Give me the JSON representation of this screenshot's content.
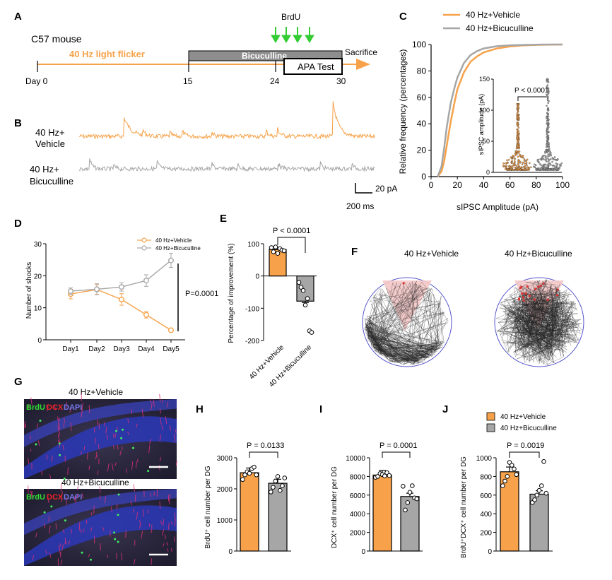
{
  "colors": {
    "orange": "#f7a24a",
    "gray": "#a6a6a6",
    "green": "#33cc33",
    "track_red": "#f4c6c6",
    "circle_blue": "#5555cc"
  },
  "panelA": {
    "letter": "A",
    "mouse": "C57 mouse",
    "flicker": "40 Hz light flicker",
    "bicuculline": "Bicuculline",
    "brdu": "BrdU",
    "apa": "APA Test",
    "sacrifice": "Sacrifice",
    "days": [
      "Day 0",
      "15",
      "24",
      "30"
    ]
  },
  "panelB": {
    "letter": "B",
    "vehicle_label": [
      "40 Hz+",
      "Vehicle"
    ],
    "bic_label": [
      "40 Hz+",
      "Bicuculline"
    ],
    "scale_y": "20 pA",
    "scale_x": "200 ms"
  },
  "panelC": {
    "letter": "C",
    "legend": [
      "40 Hz+Vehicle",
      "40 Hz+Bicuculline"
    ],
    "xlabel": "sIPSC Amplitude (pA)",
    "ylabel": "Relative frequency (percentages)",
    "inset_ylabel": "sIPSC amplitude (pA)",
    "inset_p": "P < 0.0001"
  },
  "panelD": {
    "letter": "D",
    "legend": [
      "40 Hz+Vehicle",
      "40 Hz+Bicuculline"
    ],
    "ylabel": "Number of shocks",
    "p": "P=0.0001"
  },
  "panelE": {
    "letter": "E",
    "ylabel": "Percentage of improvement (%)",
    "p": "P < 0.0001"
  },
  "panelF": {
    "letter": "F",
    "titles": [
      "40 Hz+Vehicle",
      "40 Hz+Bicuculline"
    ]
  },
  "panelG": {
    "letter": "G",
    "titles": [
      "40 Hz+Vehicle",
      "40 Hz+Bicuculline"
    ],
    "stain": [
      "BrdU",
      "DCX",
      "DAPI"
    ]
  },
  "panelH": {
    "letter": "H",
    "ylabel": "BrdU⁺ cell number per DG",
    "p": "P = 0.0133"
  },
  "panelI": {
    "letter": "I",
    "ylabel": "DCX⁺ cell number per DG",
    "p": "P = 0.0001"
  },
  "panelJ": {
    "letter": "J",
    "ylabel": "BrdU⁺DCX⁺ cell number per DG",
    "p": "P = 0.0019",
    "legend": [
      "40 Hz+Vehicle",
      "40 Hz+Bicuculline"
    ]
  },
  "chart_data": [
    {
      "id": "C",
      "type": "line",
      "title": "",
      "xlabel": "sIPSC Amplitude (pA)",
      "ylabel": "Relative frequency (percentages)",
      "xlim": [
        0,
        100
      ],
      "ylim": [
        0,
        100
      ],
      "xticks": [
        0,
        20,
        40,
        60,
        80,
        100
      ],
      "yticks": [
        0,
        20,
        40,
        60,
        80,
        100
      ],
      "x": [
        5,
        8,
        10,
        12,
        15,
        18,
        20,
        25,
        30,
        35,
        40,
        50,
        60,
        70,
        80,
        90,
        100
      ],
      "series": [
        {
          "name": "40 Hz+Vehicle",
          "values": [
            0,
            4,
            12,
            24,
            42,
            57,
            66,
            79,
            87,
            91,
            94,
            97,
            98.5,
            99.3,
            99.7,
            99.9,
            100
          ]
        },
        {
          "name": "40 Hz+Bicuculline",
          "values": [
            0,
            8,
            22,
            38,
            56,
            68,
            75,
            86,
            92,
            95,
            97,
            98.7,
            99.4,
            99.7,
            99.9,
            100,
            100
          ]
        }
      ]
    },
    {
      "id": "C-inset",
      "type": "scatter",
      "ylabel": "sIPSC amplitude (pA)",
      "ylim": [
        0,
        150
      ],
      "yticks": [
        0,
        50,
        100,
        150
      ],
      "categories": [
        "40 Hz+Vehicle",
        "40 Hz+Bicuculline"
      ]
    },
    {
      "id": "D",
      "type": "line",
      "categories": [
        "Day1",
        "Day2",
        "Day3",
        "Day4",
        "Day5"
      ],
      "ylabel": "Number of shocks",
      "ylim": [
        0,
        30
      ],
      "yticks": [
        0,
        10,
        20,
        30
      ],
      "series": [
        {
          "name": "40 Hz+Vehicle",
          "values": [
            14.3,
            15.7,
            12.6,
            7.8,
            3.0
          ],
          "err": [
            1.5,
            1.5,
            1.8,
            1.0,
            0.5
          ]
        },
        {
          "name": "40 Hz+Bicuculline",
          "values": [
            15.2,
            15.8,
            16.5,
            18.5,
            24.8
          ],
          "err": [
            1.0,
            1.7,
            1.3,
            1.8,
            2.2
          ]
        }
      ]
    },
    {
      "id": "E",
      "type": "bar",
      "categories": [
        "40 Hz+Vehicle",
        "40 Hz+Bicuculline"
      ],
      "ylabel": "Percentage of improvement (%)",
      "ylim": [
        -200,
        100
      ],
      "yticks": [
        -200,
        -100,
        0,
        100
      ],
      "values": [
        82,
        -78
      ],
      "points": [
        [
          88,
          75,
          90,
          70,
          85,
          80,
          78
        ],
        [
          -20,
          -35,
          -45,
          -90,
          -70,
          -170,
          -175
        ]
      ]
    },
    {
      "id": "H",
      "type": "bar",
      "categories": [
        "40 Hz+Vehicle",
        "40 Hz+Bicuculline"
      ],
      "ylabel": "BrdU⁺ cell number per DG",
      "ylim": [
        0,
        3000
      ],
      "yticks": [
        0,
        1000,
        2000,
        3000
      ],
      "values": [
        2520,
        2180
      ],
      "points": [
        [
          2300,
          2450,
          2550,
          2500,
          2650,
          2700,
          2450
        ],
        [
          1900,
          2050,
          2250,
          2400,
          1950,
          2100,
          2350
        ]
      ]
    },
    {
      "id": "I",
      "type": "bar",
      "categories": [
        "40 Hz+Vehicle",
        "40 Hz+Bicuculline"
      ],
      "ylabel": "DCX⁺ cell number per DG",
      "ylim": [
        0,
        10000
      ],
      "yticks": [
        0,
        2000,
        4000,
        6000,
        8000,
        10000
      ],
      "values": [
        8150,
        5850
      ],
      "points": [
        [
          7900,
          8000,
          8300,
          8200,
          8050,
          8400,
          8100
        ],
        [
          6950,
          4400,
          5200,
          6300,
          7000,
          5700,
          5600
        ]
      ]
    },
    {
      "id": "J",
      "type": "bar",
      "categories": [
        "40 Hz+Vehicle",
        "40 Hz+Bicuculline"
      ],
      "ylabel": "BrdU⁺DCX⁺ cell number per DG",
      "ylim": [
        0,
        1000
      ],
      "yticks": [
        0,
        200,
        400,
        600,
        800,
        1000
      ],
      "values": [
        850,
        610
      ],
      "points": [
        [
          700,
          750,
          800,
          950,
          920,
          880,
          820
        ],
        [
          520,
          550,
          600,
          650,
          700,
          960,
          620
        ]
      ]
    }
  ]
}
